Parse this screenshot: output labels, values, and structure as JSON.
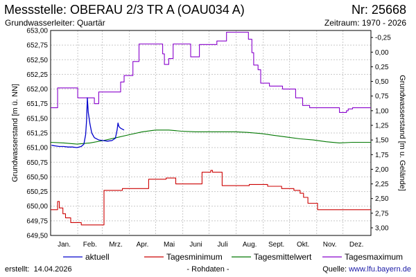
{
  "header": {
    "title": "Messstelle: OBERAU 2/3 TR A (OAU034 A)",
    "number": "Nr: 25668",
    "aquifer": "Grundwasserleiter: Quartär",
    "period": "Zeitraum: 1970 - 2026"
  },
  "footer": {
    "created_label": "erstellt:",
    "created_date": "14.04.2026",
    "raw": "- Rohdaten -",
    "source_label": "Quelle:",
    "source_url": "www.lfu.bayern.de"
  },
  "chart_data": {
    "type": "line",
    "xlabel": "",
    "ylabel": "Grundwasserstand [m ü. NN]",
    "ylabel_right": "Grundwasserstand [m u. Gelände]",
    "ylim": [
      649.5,
      653.0
    ],
    "xlim": [
      0,
      366
    ],
    "x_unit": "day of year",
    "y_ticks": [
      "649,50",
      "649,75",
      "650,00",
      "650,25",
      "650,50",
      "650,75",
      "651,00",
      "651,25",
      "651,50",
      "651,75",
      "652,00",
      "652,25",
      "652,50",
      "652,75",
      "653,00"
    ],
    "y_ticks_right": [
      {
        "label": "-0,25",
        "level": 652.88
      },
      {
        "label": "0,00",
        "level": 652.63
      },
      {
        "label": "0,25",
        "level": 652.38
      },
      {
        "label": "0,50",
        "level": 652.13
      },
      {
        "label": "0,75",
        "level": 651.88
      },
      {
        "label": "1,00",
        "level": 651.63
      },
      {
        "label": "1,25",
        "level": 651.38
      },
      {
        "label": "1,50",
        "level": 651.13
      },
      {
        "label": "1,75",
        "level": 650.88
      },
      {
        "label": "2,00",
        "level": 650.63
      },
      {
        "label": "2,25",
        "level": 650.38
      },
      {
        "label": "2,50",
        "level": 650.13
      },
      {
        "label": "2,75",
        "level": 649.88
      },
      {
        "label": "3,00",
        "level": 649.63
      }
    ],
    "months": [
      "Jan.",
      "Feb.",
      "Mrz.",
      "Apr.",
      "Mai",
      "Juni",
      "Juli",
      "Aug.",
      "Sept.",
      "Okt.",
      "Nov.",
      "Dez."
    ],
    "grid": true,
    "legend_position": "bottom",
    "series": [
      {
        "name": "aktuell",
        "color": "#0000cc",
        "points": [
          [
            1,
            651.04
          ],
          [
            5,
            651.03
          ],
          [
            10,
            651.02
          ],
          [
            15,
            651.02
          ],
          [
            20,
            651.01
          ],
          [
            25,
            651.01
          ],
          [
            30,
            651.0
          ],
          [
            35,
            651.02
          ],
          [
            38,
            651.06
          ],
          [
            40,
            651.22
          ],
          [
            41,
            651.45
          ],
          [
            42,
            651.85
          ],
          [
            43,
            651.6
          ],
          [
            45,
            651.4
          ],
          [
            47,
            651.25
          ],
          [
            50,
            651.17
          ],
          [
            55,
            651.13
          ],
          [
            60,
            651.12
          ],
          [
            65,
            651.11
          ],
          [
            70,
            651.12
          ],
          [
            74,
            651.16
          ],
          [
            76,
            651.3
          ],
          [
            77,
            651.42
          ],
          [
            78,
            651.36
          ],
          [
            80,
            651.33
          ],
          [
            84,
            651.3
          ]
        ]
      },
      {
        "name": "Tagesminimum",
        "color": "#cc0000",
        "points": [
          [
            0,
            649.94
          ],
          [
            8,
            649.94
          ],
          [
            8,
            650.08
          ],
          [
            10,
            650.08
          ],
          [
            10,
            649.97
          ],
          [
            14,
            649.97
          ],
          [
            14,
            649.87
          ],
          [
            17,
            649.87
          ],
          [
            17,
            649.8
          ],
          [
            23,
            649.8
          ],
          [
            23,
            649.72
          ],
          [
            35,
            649.72
          ],
          [
            35,
            649.68
          ],
          [
            61,
            649.68
          ],
          [
            61,
            650.27
          ],
          [
            82,
            650.27
          ],
          [
            82,
            650.3
          ],
          [
            112,
            650.3
          ],
          [
            112,
            650.46
          ],
          [
            132,
            650.46
          ],
          [
            132,
            650.48
          ],
          [
            143,
            650.48
          ],
          [
            143,
            650.38
          ],
          [
            173,
            650.38
          ],
          [
            173,
            650.58
          ],
          [
            183,
            650.58
          ],
          [
            183,
            650.61
          ],
          [
            185,
            650.61
          ],
          [
            185,
            650.58
          ],
          [
            196,
            650.58
          ],
          [
            196,
            650.35
          ],
          [
            227,
            650.35
          ],
          [
            227,
            650.37
          ],
          [
            248,
            650.37
          ],
          [
            248,
            650.34
          ],
          [
            264,
            650.34
          ],
          [
            264,
            650.3
          ],
          [
            278,
            650.3
          ],
          [
            278,
            650.27
          ],
          [
            285,
            650.27
          ],
          [
            285,
            650.22
          ],
          [
            289,
            650.22
          ],
          [
            289,
            650.15
          ],
          [
            294,
            650.15
          ],
          [
            294,
            650.05
          ],
          [
            305,
            650.05
          ],
          [
            305,
            649.94
          ],
          [
            366,
            649.94
          ]
        ]
      },
      {
        "name": "Tagesmittelwert",
        "color": "#007700",
        "points": [
          [
            0,
            651.09
          ],
          [
            15,
            651.08
          ],
          [
            30,
            651.06
          ],
          [
            45,
            651.08
          ],
          [
            60,
            651.12
          ],
          [
            75,
            651.17
          ],
          [
            90,
            651.22
          ],
          [
            105,
            651.27
          ],
          [
            120,
            651.3
          ],
          [
            135,
            651.3
          ],
          [
            150,
            651.28
          ],
          [
            165,
            651.27
          ],
          [
            180,
            651.27
          ],
          [
            195,
            651.27
          ],
          [
            210,
            651.27
          ],
          [
            225,
            651.26
          ],
          [
            240,
            651.24
          ],
          [
            255,
            651.21
          ],
          [
            270,
            651.18
          ],
          [
            285,
            651.15
          ],
          [
            300,
            651.13
          ],
          [
            315,
            651.1
          ],
          [
            330,
            651.08
          ],
          [
            345,
            651.09
          ],
          [
            366,
            651.09
          ]
        ]
      },
      {
        "name": "Tagesmaximum",
        "color": "#8800cc",
        "points": [
          [
            0,
            651.68
          ],
          [
            8,
            651.68
          ],
          [
            8,
            652.02
          ],
          [
            31,
            652.02
          ],
          [
            31,
            651.85
          ],
          [
            50,
            651.85
          ],
          [
            50,
            651.75
          ],
          [
            55,
            651.75
          ],
          [
            55,
            651.95
          ],
          [
            80,
            651.95
          ],
          [
            80,
            652.12
          ],
          [
            84,
            652.12
          ],
          [
            84,
            652.23
          ],
          [
            94,
            652.23
          ],
          [
            94,
            652.47
          ],
          [
            101,
            652.47
          ],
          [
            101,
            652.77
          ],
          [
            128,
            652.77
          ],
          [
            128,
            652.6
          ],
          [
            130,
            652.6
          ],
          [
            130,
            652.42
          ],
          [
            135,
            652.42
          ],
          [
            135,
            652.52
          ],
          [
            140,
            652.52
          ],
          [
            140,
            652.77
          ],
          [
            160,
            652.77
          ],
          [
            160,
            652.55
          ],
          [
            170,
            652.55
          ],
          [
            170,
            652.76
          ],
          [
            190,
            652.76
          ],
          [
            190,
            652.82
          ],
          [
            201,
            652.82
          ],
          [
            201,
            652.97
          ],
          [
            226,
            652.97
          ],
          [
            226,
            652.85
          ],
          [
            230,
            652.85
          ],
          [
            230,
            652.62
          ],
          [
            232,
            652.62
          ],
          [
            232,
            652.41
          ],
          [
            237,
            652.41
          ],
          [
            237,
            652.33
          ],
          [
            240,
            652.33
          ],
          [
            240,
            652.1
          ],
          [
            250,
            652.1
          ],
          [
            250,
            652.05
          ],
          [
            265,
            652.05
          ],
          [
            265,
            652.0
          ],
          [
            280,
            652.0
          ],
          [
            280,
            651.85
          ],
          [
            288,
            651.85
          ],
          [
            288,
            651.72
          ],
          [
            296,
            651.72
          ],
          [
            296,
            651.68
          ],
          [
            330,
            651.68
          ],
          [
            330,
            651.6
          ],
          [
            338,
            651.6
          ],
          [
            338,
            651.63
          ],
          [
            340,
            651.63
          ],
          [
            340,
            651.66
          ],
          [
            345,
            651.66
          ],
          [
            345,
            651.68
          ],
          [
            366,
            651.68
          ]
        ]
      }
    ]
  }
}
